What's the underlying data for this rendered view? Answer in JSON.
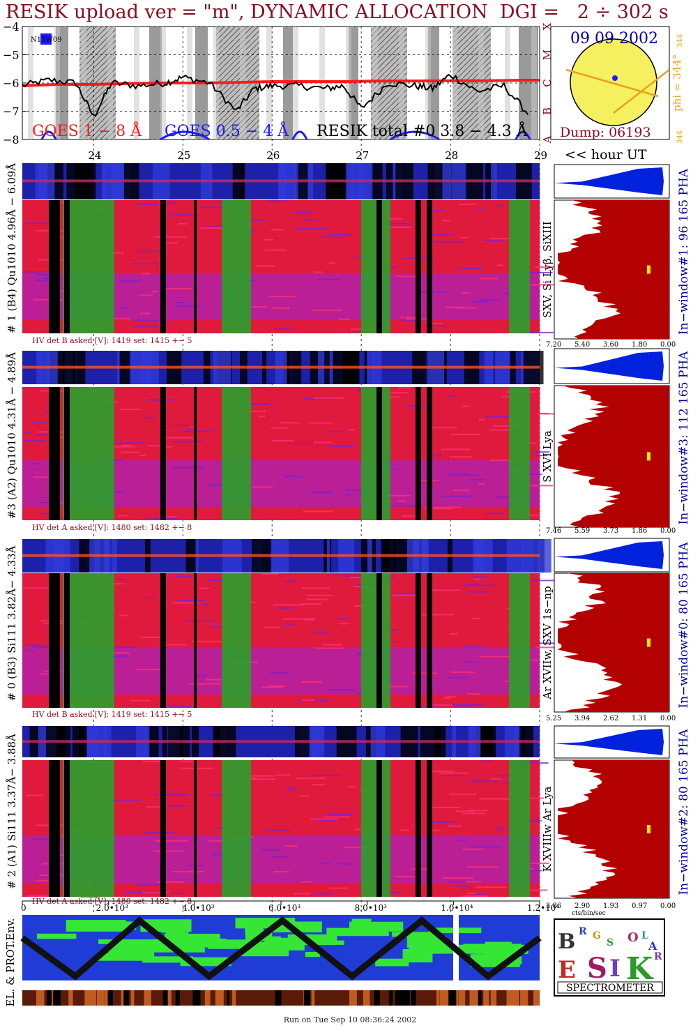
{
  "title": "RESIK upload ver = \"m\", DYNAMIC ALLOCATION  DGI =   2 ÷ 302 s",
  "footer": "Run on Tue Sep 10 08:36:24 2002",
  "goes": {
    "y_ticks": [
      "−4",
      "−5",
      "−6",
      "−7",
      "−8"
    ],
    "y_values": [
      -4,
      -5,
      -6,
      -7,
      -8
    ],
    "class_letters": [
      "X",
      "M",
      "C",
      "B",
      "A"
    ],
    "legend": [
      "GOES 1 − 8 Å",
      "GOES 0.5 − 4 Å",
      "RESIK total #0  3.8 − 4.3 Å"
    ],
    "legend_colors": [
      "#ff1a1a",
      "#1a1aff",
      "#000000"
    ],
    "corner_label": "N15W09",
    "hour_ticks": [
      "24",
      "25",
      "26",
      "27",
      "28",
      "29"
    ],
    "hour_values": [
      24,
      25,
      26,
      27,
      28,
      29
    ],
    "hour_axis_label": "<< hour UT"
  },
  "sun": {
    "date": "09 09 2002",
    "dump": "Dump: 06193",
    "phi": "phi = 344°",
    "phi_top": "344",
    "phi_bottom": "344"
  },
  "detectors": [
    {
      "side_label": "# 1 (B4) Qu1010 4.96Å − 6.09Å",
      "hv": "HV det B asked [V]:  1419 set:  1415 +−   5",
      "line_label": "SXV, Si Lyβ, SiXIII",
      "window_label": "In−window#1:  96 165 PHA",
      "pha_ticks": [
        "7.20",
        "5.40",
        "3.60",
        "1.80",
        "0.00"
      ]
    },
    {
      "side_label": "#3 (A2) Qu1010  4.31Å − 4.89Å",
      "hv": "HV det A asked [V]:  1480 set:  1482 +−   8",
      "line_label": "S XVI Lya",
      "window_label": "In−window#3:  112 165 PHA",
      "pha_ticks": [
        "7.46",
        "5.59",
        "3.73",
        "1.86",
        "0.00"
      ]
    },
    {
      "side_label": "# 0 (B3) Si111  3.82Å− 4.33Å",
      "hv": "HV det B asked [V]:  1419 set:  1415 +−   5",
      "line_label": "Ar XVIIw,  SXV 1s−np",
      "window_label": "In−window#0:   80 165 PHA",
      "pha_ticks": [
        "5.25",
        "3.94",
        "2.62",
        "1.31",
        "0.00"
      ]
    },
    {
      "side_label": "# 2 (A1) Si111  3.37Å− 3.88Å",
      "hv": "HV det A asked [V]:  1480 set:  1482 +−   8",
      "line_label": "K XVIIIw  Ar Lya",
      "window_label": "In−window#2:   80 165 PHA",
      "pha_ticks": [
        "3.86",
        "2.90",
        "1.93",
        "0.97",
        "0.00"
      ]
    }
  ],
  "pha_axis_unit": "cts/bin/sec",
  "bottom_axis": {
    "ticks": [
      "0",
      "2.0•10³",
      "4.0•10³",
      "6.0•10³",
      "8.0•10³",
      "1.0•10⁴",
      "1.2•10⁴"
    ],
    "values": [
      0,
      2000,
      4000,
      6000,
      8000,
      10000,
      12000
    ]
  },
  "env_label": "EL. & PROT.Env.",
  "logo": {
    "letters": [
      "B",
      "R",
      "G",
      "S",
      "O",
      "L",
      "A",
      "R",
      "E",
      "S",
      "I",
      "K"
    ],
    "caption": "SPECTROMETER"
  },
  "colors": {
    "title": "#8b0a1e",
    "goes_long": "#ff1a1a",
    "goes_short": "#1a1aff",
    "histogram": "#b30000",
    "pha": "#0022dd",
    "spectro_red": "#e01a3c",
    "spectro_violet": "#9a24e0",
    "spectro_green": "#2aa02a",
    "env_blue": "#1f3cd6",
    "env_green": "#35e635",
    "sun": "#f4f060",
    "axis_label_blue": "#0000a0",
    "phi": "#e8a020"
  },
  "chart_data": [
    {
      "type": "line",
      "title": "",
      "xlabel": "<< hour UT",
      "ylabel": "",
      "xlim": [
        23.2,
        29
      ],
      "ylim": [
        -8,
        -4
      ],
      "series": [
        {
          "name": "GOES 1 − 8 Å",
          "x": [
            23.2,
            23.6,
            24.0,
            24.4,
            24.8,
            25.2,
            25.6,
            26.0,
            26.4,
            26.8,
            27.2,
            27.6,
            28.0,
            28.4,
            28.8,
            29.0
          ],
          "values": [
            -6.1,
            -6.05,
            -6.05,
            -6.02,
            -6.0,
            -6.0,
            -5.98,
            -5.95,
            -5.95,
            -5.95,
            -5.93,
            -5.93,
            -5.92,
            -5.92,
            -5.9,
            -5.9
          ]
        },
        {
          "name": "RESIK total #0  3.8 − 4.3 Å",
          "x": [
            23.2,
            23.5,
            23.8,
            24.0,
            24.2,
            24.5,
            24.8,
            25.0,
            25.3,
            25.6,
            25.8,
            26.0,
            26.3,
            26.6,
            26.8,
            27.0,
            27.3,
            27.6,
            27.8,
            28.0,
            28.3,
            28.6,
            28.9
          ],
          "values": [
            -6.1,
            -5.9,
            -6.0,
            -7.2,
            -6.0,
            -6.1,
            -6.0,
            -5.8,
            -6.0,
            -7.0,
            -6.2,
            -6.1,
            -6.1,
            -6.2,
            -6.1,
            -6.9,
            -6.0,
            -6.1,
            -6.2,
            -5.7,
            -6.3,
            -6.1,
            -7.2
          ]
        }
      ]
    }
  ]
}
